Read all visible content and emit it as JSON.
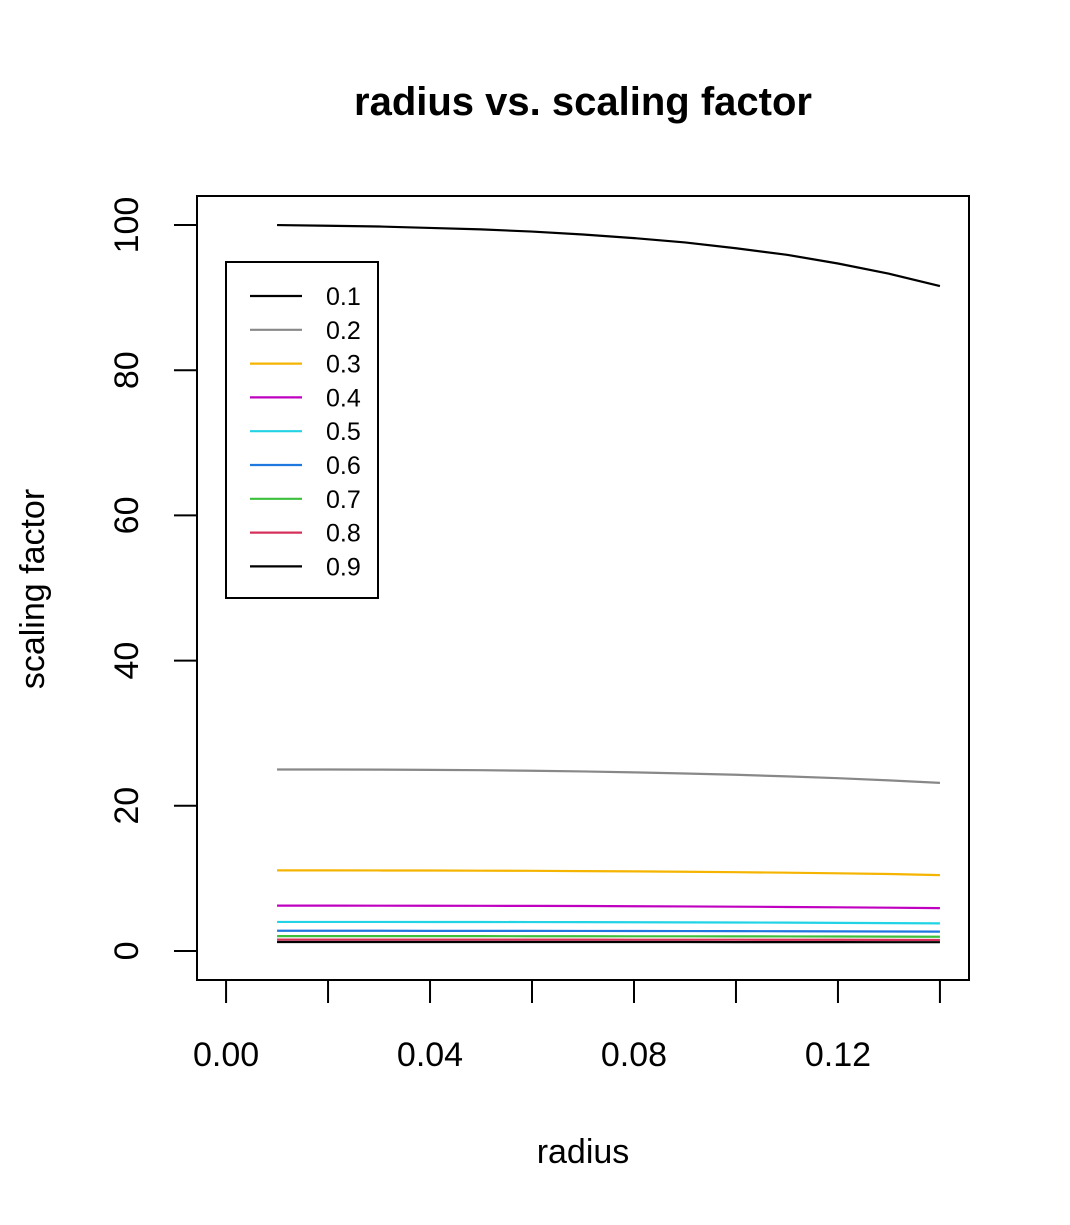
{
  "chart_data": {
    "type": "line",
    "title": "radius vs. scaling factor",
    "xlabel": "radius",
    "ylabel": "scaling factor",
    "xlim": [
      -0.0057,
      0.1457
    ],
    "ylim": [
      -4,
      104
    ],
    "x_ticks": [
      0.0,
      0.02,
      0.04,
      0.06,
      0.08,
      0.1,
      0.12,
      0.14
    ],
    "x_tick_labels": [
      "0.00",
      "",
      "0.04",
      "",
      "0.08",
      "",
      "0.12",
      ""
    ],
    "y_ticks": [
      0,
      20,
      40,
      60,
      80,
      100
    ],
    "y_tick_labels": [
      "0",
      "20",
      "40",
      "60",
      "80",
      "100"
    ],
    "grid": false,
    "legend_position": "top-left",
    "x": [
      0.01,
      0.02,
      0.03,
      0.04,
      0.05,
      0.06,
      0.07,
      0.08,
      0.09,
      0.1,
      0.11,
      0.12,
      0.13,
      0.14
    ],
    "series": [
      {
        "name": "0.1",
        "color": "#000000",
        "values": [
          100,
          99.9,
          99.8,
          99.6,
          99.4,
          99.1,
          98.7,
          98.2,
          97.6,
          96.8,
          95.9,
          94.7,
          93.3,
          91.6
        ]
      },
      {
        "name": "0.2",
        "color": "#888888",
        "values": [
          25.0,
          25.0,
          24.98,
          24.95,
          24.9,
          24.83,
          24.73,
          24.6,
          24.45,
          24.27,
          24.05,
          23.8,
          23.5,
          23.15
        ]
      },
      {
        "name": "0.3",
        "color": "#F5B400",
        "values": [
          11.1,
          11.1,
          11.09,
          11.08,
          11.06,
          11.04,
          11.0,
          10.96,
          10.91,
          10.85,
          10.78,
          10.7,
          10.6,
          10.45
        ]
      },
      {
        "name": "0.4",
        "color": "#C000C0",
        "values": [
          6.25,
          6.25,
          6.24,
          6.23,
          6.22,
          6.21,
          6.19,
          6.16,
          6.13,
          6.1,
          6.06,
          6.01,
          5.96,
          5.9
        ]
      },
      {
        "name": "0.5",
        "color": "#22D3E6",
        "values": [
          4.0,
          4.0,
          4.0,
          3.99,
          3.99,
          3.98,
          3.97,
          3.96,
          3.94,
          3.92,
          3.9,
          3.87,
          3.84,
          3.8
        ]
      },
      {
        "name": "0.6",
        "color": "#1F78E0",
        "values": [
          2.78,
          2.78,
          2.78,
          2.77,
          2.77,
          2.77,
          2.76,
          2.75,
          2.74,
          2.73,
          2.72,
          2.7,
          2.68,
          2.66
        ]
      },
      {
        "name": "0.7",
        "color": "#3CC03C",
        "values": [
          2.04,
          2.04,
          2.04,
          2.04,
          2.04,
          2.03,
          2.03,
          2.02,
          2.02,
          2.01,
          2.0,
          1.99,
          1.98,
          1.96
        ]
      },
      {
        "name": "0.8",
        "color": "#D6305A",
        "values": [
          1.56,
          1.56,
          1.56,
          1.56,
          1.56,
          1.56,
          1.56,
          1.55,
          1.55,
          1.55,
          1.54,
          1.54,
          1.53,
          1.52
        ]
      },
      {
        "name": "0.9",
        "color": "#000000",
        "values": [
          1.23,
          1.23,
          1.23,
          1.23,
          1.23,
          1.23,
          1.23,
          1.23,
          1.23,
          1.22,
          1.22,
          1.22,
          1.21,
          1.21
        ]
      }
    ]
  }
}
